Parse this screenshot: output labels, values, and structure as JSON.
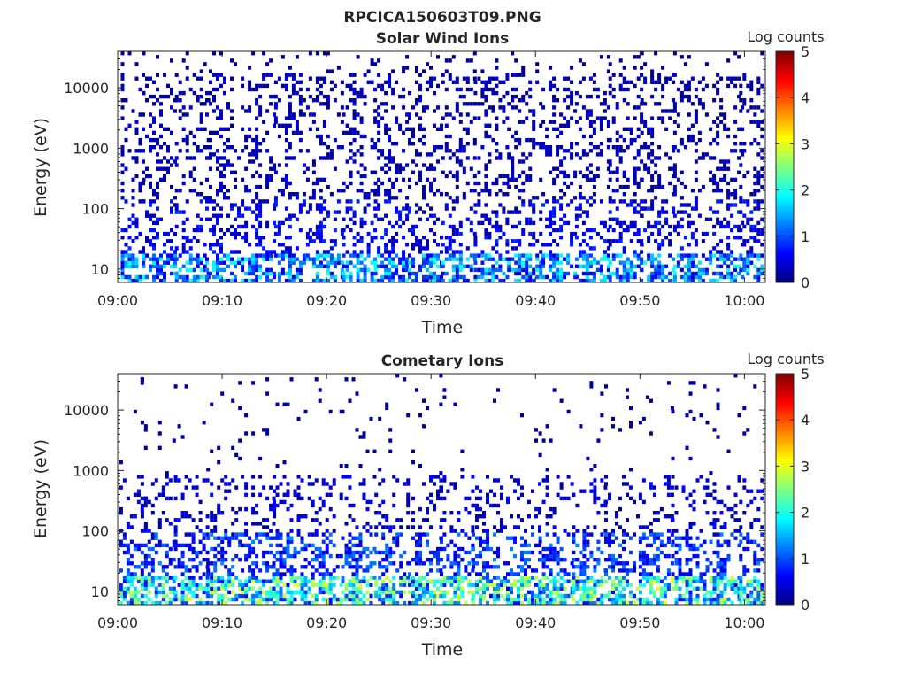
{
  "figure": {
    "title": "RPCICA150603T09.PNG"
  },
  "chart_data": [
    {
      "type": "heatmap",
      "title": "Solar Wind Ions",
      "xlabel": "Time",
      "ylabel": "Energy (eV)",
      "x_ticks": [
        "09:00",
        "09:10",
        "09:20",
        "09:30",
        "09:40",
        "09:50",
        "10:00"
      ],
      "y_ticks": [
        "10",
        "100",
        "1000",
        "10000"
      ],
      "y_scale": "log",
      "x_range": [
        "09:00",
        "10:02"
      ],
      "y_range": [
        6,
        40000
      ],
      "colorbar": {
        "label": "Log counts",
        "ticks": [
          "0",
          "1",
          "2",
          "3",
          "4",
          "5"
        ],
        "range": [
          0,
          5
        ],
        "colormap": "jet"
      },
      "bursts_minutes": [
        0.3,
        3.3,
        6.5,
        9.4,
        12.8,
        16.0,
        19.3,
        22.5,
        25.5,
        28.8,
        32.0,
        35.1,
        38.3,
        41.6,
        44.8,
        48.0,
        51.0,
        54.2,
        57.6,
        60.5
      ]
    },
    {
      "type": "heatmap",
      "title": "Cometary Ions",
      "xlabel": "Time",
      "ylabel": "Energy (eV)",
      "x_ticks": [
        "09:00",
        "09:10",
        "09:20",
        "09:30",
        "09:40",
        "09:50",
        "10:00"
      ],
      "y_ticks": [
        "10",
        "100",
        "1000",
        "10000"
      ],
      "y_scale": "log",
      "x_range": [
        "09:00",
        "10:02"
      ],
      "y_range": [
        6,
        40000
      ],
      "colorbar": {
        "label": "Log counts",
        "ticks": [
          "0",
          "1",
          "2",
          "3",
          "4",
          "5"
        ],
        "range": [
          0,
          5
        ],
        "colormap": "jet"
      },
      "bursts_minutes": [
        0.5,
        3.2,
        6.4,
        9.5,
        12.8,
        15.8,
        19.2,
        22.4,
        25.6,
        28.8,
        31.8,
        34.9,
        38.2,
        41.3,
        44.5,
        47.6,
        50.9,
        54.0,
        57.3,
        60.5
      ]
    }
  ]
}
